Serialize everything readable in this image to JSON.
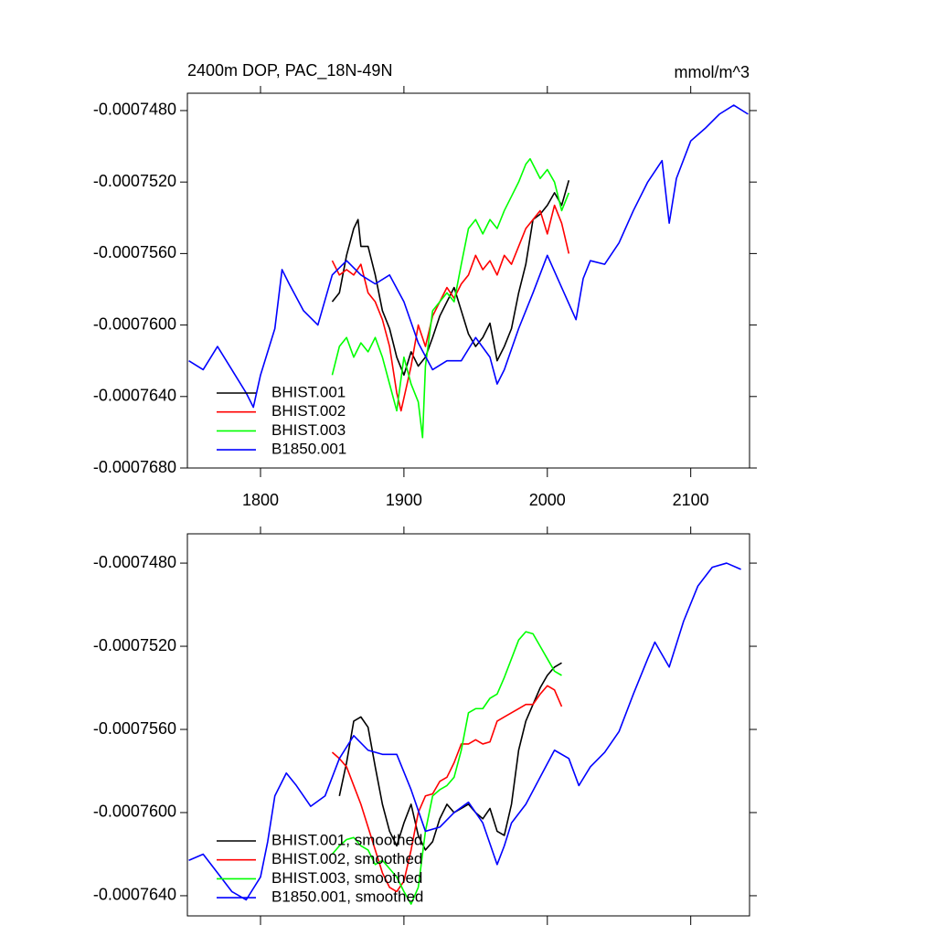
{
  "chart_data": [
    {
      "type": "line",
      "title": "2400m DOP, PAC_18N-49N",
      "unit_label": "mmol/m^3",
      "xlim": [
        1749,
        2141
      ],
      "xticks": [
        1800,
        1900,
        2000,
        2100
      ],
      "xtick_labels": true,
      "ylim": [
        -0.000768,
        -0.00074703
      ],
      "yticks": [
        {
          "value": -0.000748,
          "label": "-0.0007480"
        },
        {
          "value": -0.000752,
          "label": "-0.0007520"
        },
        {
          "value": -0.000756,
          "label": "-0.0007560"
        },
        {
          "value": -0.00076,
          "label": "-0.0007600"
        },
        {
          "value": -0.000764,
          "label": "-0.0007640"
        },
        {
          "value": -0.000768,
          "label": "-0.0007680"
        }
      ],
      "legend": "lower left",
      "series": [
        {
          "name": "BHIST.001",
          "color": "#000000",
          "x": [
            1850,
            1855,
            1860,
            1865,
            1868,
            1870,
            1875,
            1880,
            1885,
            1890,
            1895,
            1900,
            1905,
            1910,
            1915,
            1920,
            1925,
            1930,
            1935,
            1940,
            1945,
            1950,
            1955,
            1960,
            1965,
            1970,
            1975,
            1980,
            1985,
            1990,
            1995,
            2000,
            2005,
            2010,
            2015
          ],
          "values": [
            -0.0007587,
            -0.0007582,
            -0.0007561,
            -0.0007546,
            -0.0007541,
            -0.0007556,
            -0.0007556,
            -0.0007572,
            -0.0007592,
            -0.0007602,
            -0.0007618,
            -0.0007628,
            -0.0007615,
            -0.0007623,
            -0.0007618,
            -0.0007607,
            -0.0007595,
            -0.0007587,
            -0.0007579,
            -0.0007592,
            -0.0007605,
            -0.0007612,
            -0.0007607,
            -0.0007599,
            -0.000762,
            -0.0007612,
            -0.0007602,
            -0.0007582,
            -0.0007566,
            -0.0007541,
            -0.0007538,
            -0.0007533,
            -0.0007526,
            -0.0007533,
            -0.0007519
          ]
        },
        {
          "name": "BHIST.002",
          "color": "#ff0000",
          "x": [
            1850,
            1855,
            1860,
            1865,
            1870,
            1875,
            1880,
            1885,
            1890,
            1895,
            1898,
            1905,
            1910,
            1915,
            1920,
            1925,
            1930,
            1935,
            1940,
            1945,
            1950,
            1955,
            1960,
            1965,
            1970,
            1975,
            1980,
            1985,
            1990,
            1995,
            2000,
            2005,
            2010,
            2015
          ],
          "values": [
            -0.0007564,
            -0.0007572,
            -0.0007569,
            -0.0007572,
            -0.0007566,
            -0.0007582,
            -0.0007587,
            -0.0007597,
            -0.0007612,
            -0.0007638,
            -0.0007648,
            -0.0007623,
            -0.00076,
            -0.0007612,
            -0.0007595,
            -0.0007587,
            -0.0007579,
            -0.0007585,
            -0.0007577,
            -0.0007572,
            -0.0007561,
            -0.0007569,
            -0.0007564,
            -0.0007572,
            -0.0007561,
            -0.0007566,
            -0.0007556,
            -0.0007546,
            -0.0007541,
            -0.0007536,
            -0.0007549,
            -0.0007533,
            -0.0007543,
            -0.000756
          ]
        },
        {
          "name": "BHIST.003",
          "color": "#00ff00",
          "x": [
            1850,
            1855,
            1860,
            1865,
            1870,
            1875,
            1880,
            1885,
            1890,
            1895,
            1900,
            1905,
            1910,
            1913,
            1915,
            1920,
            1925,
            1930,
            1935,
            1940,
            1945,
            1950,
            1955,
            1960,
            1965,
            1970,
            1975,
            1980,
            1985,
            1988,
            1995,
            2000,
            2005,
            2010,
            2015
          ],
          "values": [
            -0.0007628,
            -0.0007612,
            -0.0007607,
            -0.0007618,
            -0.000761,
            -0.0007615,
            -0.0007607,
            -0.0007618,
            -0.0007633,
            -0.0007648,
            -0.0007618,
            -0.0007633,
            -0.0007643,
            -0.0007663,
            -0.0007623,
            -0.0007592,
            -0.0007587,
            -0.0007582,
            -0.0007587,
            -0.0007566,
            -0.0007546,
            -0.0007541,
            -0.0007549,
            -0.0007541,
            -0.0007546,
            -0.0007536,
            -0.0007528,
            -0.000752,
            -0.000751,
            -0.0007507,
            -0.0007518,
            -0.0007513,
            -0.000752,
            -0.0007536,
            -0.0007526
          ]
        },
        {
          "name": "B1850.001",
          "color": "#0000ff",
          "x": [
            1750,
            1760,
            1770,
            1780,
            1790,
            1795,
            1800,
            1810,
            1815,
            1820,
            1830,
            1840,
            1850,
            1860,
            1870,
            1880,
            1890,
            1900,
            1910,
            1920,
            1930,
            1940,
            1950,
            1960,
            1965,
            1970,
            1980,
            1990,
            2000,
            2010,
            2020,
            2025,
            2030,
            2040,
            2050,
            2060,
            2070,
            2080,
            2085,
            2090,
            2100,
            2110,
            2120,
            2130,
            2140
          ],
          "values": [
            -0.000762,
            -0.0007625,
            -0.0007612,
            -0.0007625,
            -0.0007638,
            -0.0007646,
            -0.0007628,
            -0.0007602,
            -0.0007569,
            -0.0007577,
            -0.0007592,
            -0.00076,
            -0.0007572,
            -0.0007564,
            -0.0007572,
            -0.0007577,
            -0.0007572,
            -0.0007587,
            -0.000761,
            -0.0007625,
            -0.000762,
            -0.000762,
            -0.0007607,
            -0.0007618,
            -0.0007633,
            -0.0007625,
            -0.0007602,
            -0.0007582,
            -0.0007561,
            -0.0007579,
            -0.0007597,
            -0.0007574,
            -0.0007564,
            -0.0007566,
            -0.0007554,
            -0.0007536,
            -0.000752,
            -0.0007508,
            -0.0007543,
            -0.0007518,
            -0.0007497,
            -0.000749,
            -0.0007482,
            -0.0007477,
            -0.0007482
          ]
        }
      ]
    },
    {
      "type": "line",
      "xlim": [
        1749,
        2141
      ],
      "xticks": [
        1800,
        1900,
        2000,
        2100
      ],
      "xtick_labels": false,
      "ylim": [
        -0.00076497,
        -0.00074659
      ],
      "yticks": [
        {
          "value": -0.000748,
          "label": "-0.0007480"
        },
        {
          "value": -0.000752,
          "label": "-0.0007520"
        },
        {
          "value": -0.000756,
          "label": "-0.0007560"
        },
        {
          "value": -0.00076,
          "label": "-0.0007600"
        },
        {
          "value": -0.000764,
          "label": "-0.0007640"
        }
      ],
      "legend": "lower left",
      "series": [
        {
          "name": "BHIST.001, smoothed",
          "color": "#000000",
          "x": [
            1855,
            1860,
            1865,
            1870,
            1875,
            1880,
            1885,
            1890,
            1895,
            1900,
            1905,
            1910,
            1915,
            1920,
            1925,
            1930,
            1935,
            1940,
            1945,
            1950,
            1955,
            1960,
            1965,
            1970,
            1975,
            1980,
            1985,
            1990,
            1995,
            2000,
            2005,
            2010
          ],
          "values": [
            -0.0007592,
            -0.0007576,
            -0.0007556,
            -0.0007554,
            -0.0007559,
            -0.0007578,
            -0.0007596,
            -0.0007609,
            -0.0007616,
            -0.0007605,
            -0.0007596,
            -0.0007611,
            -0.0007618,
            -0.0007614,
            -0.0007603,
            -0.0007596,
            -0.00076,
            -0.0007598,
            -0.0007596,
            -0.00076,
            -0.0007603,
            -0.0007598,
            -0.0007609,
            -0.0007611,
            -0.0007596,
            -0.000757,
            -0.0007556,
            -0.0007548,
            -0.000754,
            -0.0007534,
            -0.000753,
            -0.0007528
          ]
        },
        {
          "name": "BHIST.002, smoothed",
          "color": "#ff0000",
          "x": [
            1850,
            1855,
            1860,
            1865,
            1870,
            1875,
            1880,
            1885,
            1890,
            1895,
            1900,
            1905,
            1910,
            1915,
            1920,
            1925,
            1930,
            1935,
            1940,
            1945,
            1950,
            1955,
            1960,
            1965,
            1970,
            1975,
            1980,
            1985,
            1990,
            1995,
            2000,
            2005,
            2010
          ],
          "values": [
            -0.0007571,
            -0.0007574,
            -0.0007578,
            -0.0007587,
            -0.0007596,
            -0.0007607,
            -0.0007618,
            -0.0007629,
            -0.0007636,
            -0.0007638,
            -0.0007633,
            -0.0007618,
            -0.00076,
            -0.0007592,
            -0.0007591,
            -0.0007585,
            -0.0007583,
            -0.0007576,
            -0.0007567,
            -0.0007567,
            -0.0007565,
            -0.0007567,
            -0.0007566,
            -0.0007556,
            -0.0007554,
            -0.0007552,
            -0.000755,
            -0.0007548,
            -0.0007548,
            -0.0007543,
            -0.0007539,
            -0.0007541,
            -0.0007549
          ]
        },
        {
          "name": "BHIST.003, smoothed",
          "color": "#00ff00",
          "x": [
            1850,
            1855,
            1860,
            1865,
            1870,
            1875,
            1880,
            1885,
            1890,
            1895,
            1900,
            1905,
            1910,
            1915,
            1920,
            1925,
            1930,
            1935,
            1940,
            1945,
            1950,
            1955,
            1960,
            1965,
            1970,
            1975,
            1980,
            1985,
            1990,
            1995,
            2000,
            2005,
            2010
          ],
          "values": [
            -0.000762,
            -0.0007616,
            -0.0007613,
            -0.0007612,
            -0.0007616,
            -0.0007618,
            -0.0007625,
            -0.0007623,
            -0.0007627,
            -0.0007631,
            -0.0007638,
            -0.0007644,
            -0.0007636,
            -0.0007609,
            -0.0007592,
            -0.0007589,
            -0.0007587,
            -0.0007583,
            -0.000757,
            -0.0007552,
            -0.000755,
            -0.000755,
            -0.0007545,
            -0.0007543,
            -0.0007535,
            -0.0007526,
            -0.0007517,
            -0.0007513,
            -0.0007514,
            -0.000752,
            -0.0007526,
            -0.0007532,
            -0.0007534
          ]
        },
        {
          "name": "B1850.001, smoothed",
          "color": "#0000ff",
          "x": [
            1750,
            1760,
            1770,
            1780,
            1790,
            1800,
            1805,
            1810,
            1818,
            1825,
            1835,
            1845,
            1855,
            1865,
            1875,
            1885,
            1895,
            1905,
            1915,
            1925,
            1935,
            1945,
            1955,
            1965,
            1970,
            1975,
            1985,
            1995,
            2005,
            2015,
            2022,
            2030,
            2040,
            2050,
            2060,
            2070,
            2075,
            2085,
            2095,
            2105,
            2115,
            2125,
            2135
          ],
          "values": [
            -0.0007623,
            -0.000762,
            -0.0007629,
            -0.0007638,
            -0.0007642,
            -0.0007631,
            -0.0007614,
            -0.0007592,
            -0.0007581,
            -0.0007587,
            -0.0007597,
            -0.0007592,
            -0.0007574,
            -0.0007563,
            -0.000757,
            -0.0007572,
            -0.0007572,
            -0.0007589,
            -0.0007609,
            -0.0007607,
            -0.00076,
            -0.0007595,
            -0.0007605,
            -0.0007625,
            -0.0007616,
            -0.0007605,
            -0.0007596,
            -0.0007583,
            -0.000757,
            -0.0007574,
            -0.0007587,
            -0.0007578,
            -0.0007571,
            -0.0007561,
            -0.0007543,
            -0.0007526,
            -0.0007518,
            -0.000753,
            -0.0007508,
            -0.0007491,
            -0.0007482,
            -0.000748,
            -0.0007483
          ]
        }
      ]
    }
  ]
}
